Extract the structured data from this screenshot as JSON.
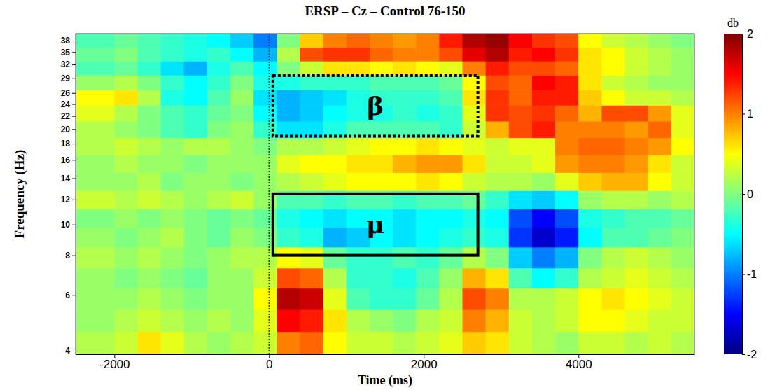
{
  "chart_data": {
    "type": "heatmap",
    "title": "ERSP – Cz – Control 76-150",
    "x_label": "Time (ms)",
    "y_label": "Frequency (Hz)",
    "xlim": [
      -2500,
      5500
    ],
    "ylim": [
      3.9,
      40
    ],
    "xticks": [
      -2000,
      0,
      2000,
      4000
    ],
    "yticks": [
      4,
      6,
      8,
      10,
      12,
      14,
      16,
      18,
      20,
      22,
      24,
      26,
      29,
      32,
      35,
      38
    ],
    "log": "y",
    "grid": false,
    "x_edges": [
      -2500,
      -2000,
      -1700,
      -1400,
      -1100,
      -800,
      -500,
      -200,
      100,
      400,
      700,
      1000,
      1300,
      1600,
      1900,
      2200,
      2500,
      2800,
      3100,
      3400,
      3700,
      4000,
      4300,
      4600,
      4900,
      5200,
      5500
    ],
    "y_edges": [
      3.9,
      4.6,
      5.4,
      6.3,
      7.3,
      8.5,
      9.8,
      11.2,
      12.8,
      14.6,
      16.6,
      18.8,
      21.2,
      23.8,
      26.6,
      29.6,
      32.8,
      36.2,
      40
    ],
    "z": [
      [
        0.2,
        0.3,
        0.6,
        0.4,
        0.2,
        0.1,
        0.2,
        0.3,
        1.0,
        1.1,
        0.5,
        0.3,
        0.3,
        0.2,
        0.3,
        0.4,
        0.7,
        0.6,
        0.3,
        0.2,
        0.1,
        0.3,
        0.3,
        0.2,
        0.3,
        0.2
      ],
      [
        0.1,
        0.2,
        0.3,
        0.2,
        0.1,
        0.2,
        0.1,
        0.4,
        1.5,
        1.4,
        0.6,
        0.2,
        0.1,
        0.0,
        0.2,
        0.3,
        1.0,
        0.8,
        0.3,
        0.2,
        0.3,
        0.5,
        0.5,
        0.4,
        0.3,
        0.3
      ],
      [
        0.1,
        0.1,
        0.2,
        0.1,
        0.0,
        0.1,
        0.1,
        0.5,
        1.8,
        1.7,
        0.4,
        -0.2,
        -0.3,
        -0.3,
        -0.1,
        0.2,
        1.2,
        1.0,
        0.2,
        0.2,
        0.3,
        0.5,
        0.6,
        0.5,
        0.4,
        0.3
      ],
      [
        0.1,
        0.0,
        0.1,
        0.0,
        -0.1,
        0.1,
        0.1,
        0.3,
        1.2,
        1.1,
        0.2,
        -0.3,
        -0.3,
        -0.4,
        -0.2,
        0.1,
        0.8,
        0.6,
        -0.2,
        -0.5,
        -0.3,
        0.2,
        0.3,
        0.4,
        0.3,
        0.2
      ],
      [
        0.2,
        0.1,
        0.2,
        0.1,
        0.0,
        0.1,
        0.2,
        0.2,
        0.5,
        0.4,
        -0.1,
        -0.3,
        -0.3,
        -0.2,
        -0.3,
        -0.1,
        0.2,
        0.0,
        -0.7,
        -1.0,
        -0.8,
        0.0,
        0.2,
        0.3,
        0.2,
        0.1
      ],
      [
        0.1,
        0.0,
        0.1,
        0.2,
        0.0,
        -0.1,
        0.1,
        0.0,
        -0.3,
        -0.4,
        -0.8,
        -0.7,
        -0.5,
        -0.6,
        -0.5,
        -0.4,
        -0.3,
        -0.4,
        -1.3,
        -1.7,
        -1.4,
        -0.5,
        -0.2,
        -0.2,
        -0.1,
        0.0
      ],
      [
        0.0,
        0.1,
        0.0,
        0.1,
        0.0,
        -0.1,
        0.0,
        -0.1,
        -0.4,
        -0.5,
        -0.6,
        -0.5,
        -0.5,
        -0.6,
        -0.5,
        -0.5,
        -0.4,
        -0.5,
        -1.2,
        -1.5,
        -1.2,
        -0.4,
        -0.3,
        -0.2,
        -0.2,
        -0.1
      ],
      [
        0.3,
        0.2,
        0.3,
        0.2,
        0.1,
        0.2,
        0.3,
        0.1,
        -0.2,
        -0.2,
        -0.3,
        -0.2,
        -0.2,
        -0.3,
        -0.2,
        -0.2,
        -0.1,
        -0.3,
        -0.6,
        -0.7,
        -0.5,
        0.1,
        0.2,
        0.2,
        0.1,
        0.2
      ],
      [
        0.1,
        0.1,
        0.2,
        0.0,
        0.1,
        0.1,
        0.0,
        0.1,
        0.2,
        0.3,
        0.4,
        0.5,
        0.5,
        0.5,
        0.6,
        0.5,
        0.3,
        0.2,
        0.2,
        0.1,
        0.4,
        0.7,
        0.8,
        0.8,
        0.5,
        0.3
      ],
      [
        0.1,
        0.2,
        0.1,
        0.1,
        0.0,
        0.1,
        0.1,
        0.1,
        0.4,
        0.5,
        0.5,
        0.6,
        0.6,
        0.8,
        0.9,
        0.9,
        0.6,
        0.3,
        0.3,
        0.4,
        0.9,
        1.0,
        1.0,
        0.9,
        0.6,
        0.3
      ],
      [
        0.2,
        0.3,
        0.2,
        0.1,
        0.2,
        0.2,
        0.1,
        0.0,
        0.2,
        0.2,
        0.3,
        0.4,
        0.5,
        0.5,
        0.6,
        0.5,
        0.4,
        0.3,
        0.4,
        0.4,
        1.0,
        1.1,
        1.1,
        1.0,
        0.9,
        0.5
      ],
      [
        0.2,
        0.1,
        0.0,
        -0.2,
        -0.3,
        0.0,
        0.1,
        -0.3,
        -0.6,
        -0.6,
        -0.4,
        -0.2,
        -0.2,
        -0.2,
        -0.2,
        -0.3,
        0.3,
        0.8,
        1.2,
        1.4,
        1.0,
        1.0,
        1.0,
        0.9,
        1.1,
        0.4
      ],
      [
        0.4,
        0.2,
        0.0,
        -0.2,
        -0.3,
        -0.1,
        0.0,
        -0.5,
        -0.8,
        -0.7,
        -0.5,
        -0.4,
        -0.4,
        -0.3,
        -0.4,
        -0.3,
        0.4,
        1.3,
        1.2,
        1.3,
        1.1,
        0.8,
        1.2,
        1.2,
        0.9,
        0.4
      ],
      [
        0.5,
        0.6,
        0.2,
        -0.4,
        -0.5,
        -0.2,
        0.1,
        -0.6,
        -0.8,
        -0.7,
        -0.6,
        -0.4,
        -0.3,
        -0.3,
        -0.3,
        -0.2,
        0.6,
        1.3,
        1.1,
        1.4,
        1.4,
        0.7,
        0.5,
        0.3,
        0.3,
        0.2
      ],
      [
        0.1,
        0.2,
        0.0,
        -0.3,
        -0.5,
        -0.3,
        0.0,
        -0.4,
        -0.4,
        -0.3,
        -0.3,
        -0.3,
        -0.2,
        -0.2,
        -0.2,
        -0.1,
        0.5,
        1.2,
        1.1,
        1.5,
        1.4,
        0.6,
        0.3,
        0.2,
        0.1,
        0.1
      ],
      [
        -0.2,
        -0.1,
        -0.3,
        -0.6,
        -0.8,
        -0.4,
        -0.2,
        -0.5,
        0.0,
        0.3,
        0.6,
        0.6,
        0.5,
        0.6,
        0.5,
        0.4,
        1.0,
        1.4,
        1.2,
        1.2,
        1.1,
        0.6,
        0.5,
        0.3,
        0.2,
        0.1
      ],
      [
        -0.1,
        0.0,
        -0.2,
        -0.3,
        -0.4,
        -0.3,
        -0.5,
        -0.8,
        0.2,
        1.2,
        1.3,
        1.3,
        1.1,
        1.0,
        1.0,
        1.2,
        1.6,
        1.8,
        1.4,
        1.5,
        1.3,
        0.6,
        0.5,
        0.3,
        0.2,
        0.1
      ],
      [
        -0.2,
        -0.1,
        -0.2,
        -0.3,
        -0.4,
        -0.5,
        -0.7,
        -1.0,
        0.0,
        0.7,
        1.0,
        1.1,
        1.0,
        0.9,
        1.0,
        1.4,
        1.8,
        1.9,
        1.5,
        1.3,
        1.2,
        0.5,
        0.3,
        0.2,
        0.1,
        0.0
      ]
    ],
    "colorbar": {
      "label": "db",
      "lim": [
        -2,
        2
      ],
      "ticks": [
        2,
        1,
        0,
        -1,
        -2
      ]
    },
    "vlines": [
      0
    ],
    "annotations": [
      {
        "text": "β",
        "x": [
          50,
          2700
        ],
        "y": [
          19,
          29.5
        ],
        "line_style": "dotted"
      },
      {
        "text": "μ",
        "x": [
          50,
          2700
        ],
        "y": [
          8,
          12.5
        ],
        "line_style": "solid"
      }
    ]
  }
}
